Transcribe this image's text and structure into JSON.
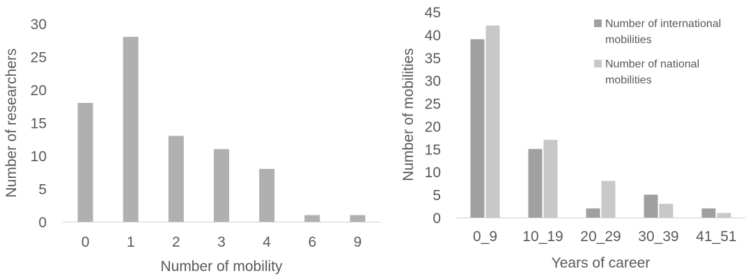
{
  "chart_data": [
    {
      "type": "bar",
      "categories": [
        "0",
        "1",
        "2",
        "3",
        "4",
        "6",
        "9"
      ],
      "values": [
        18,
        28,
        13,
        11,
        8,
        1,
        1
      ],
      "xlabel": "Number of mobility",
      "ylabel": "Number of researchers",
      "ylim": [
        0,
        30
      ],
      "yticks": [
        "0",
        "5",
        "10",
        "15",
        "20",
        "25",
        "30"
      ],
      "grid": false,
      "bar_color": "#b0b0b0"
    },
    {
      "type": "bar",
      "categories": [
        "0_9",
        "10_19",
        "20_29",
        "30_39",
        "41_51"
      ],
      "series": [
        {
          "name": "Number of international mobilities",
          "legend_lines": [
            "Number of international",
            "mobilities"
          ],
          "values": [
            39,
            15,
            2,
            5,
            2
          ],
          "color": "#a0a0a0"
        },
        {
          "name": "Number of national mobilities",
          "legend_lines": [
            "Number of national",
            "mobilities"
          ],
          "values": [
            42,
            17,
            8,
            3,
            1
          ],
          "color": "#c8c8c8"
        }
      ],
      "xlabel": "Years of career",
      "ylabel": "Number of mobilities",
      "ylim": [
        0,
        45
      ],
      "yticks": [
        "0",
        "5",
        "10",
        "15",
        "20",
        "25",
        "30",
        "35",
        "40",
        "45"
      ],
      "grid": false,
      "legend_position": "top-right"
    }
  ]
}
